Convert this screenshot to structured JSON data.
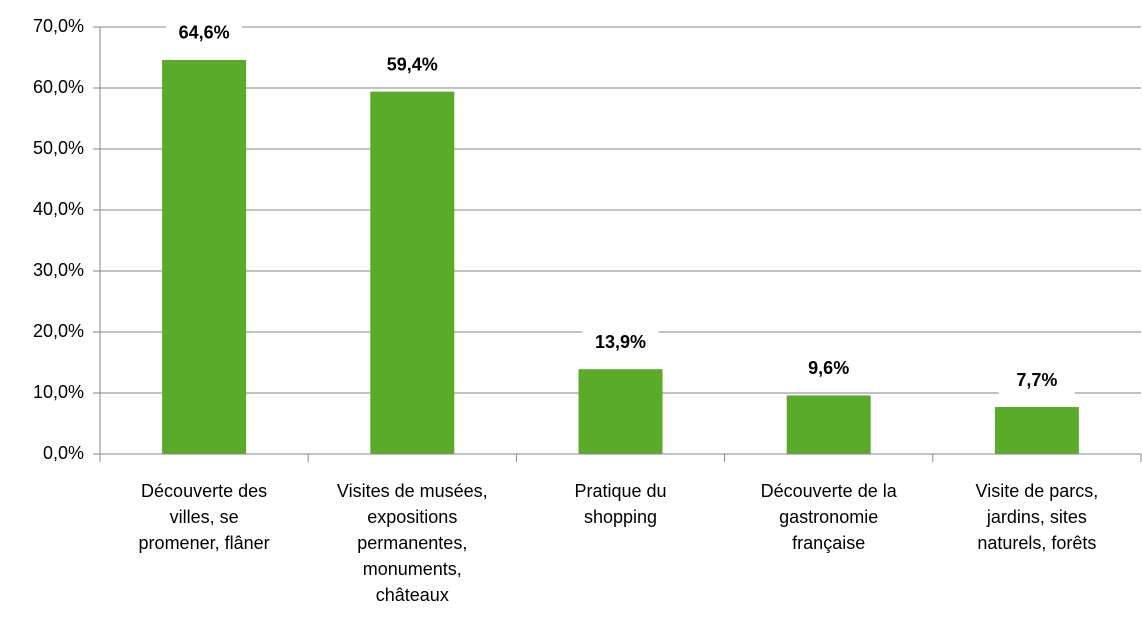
{
  "chart_data": {
    "type": "bar",
    "categories": [
      "Découverte des\nvilles, se\npromener, flâner",
      "Visites de musées,\nexpositions\npermanentes,\nmonuments,\nchâteaux",
      "Pratique du\nshopping",
      "Découverte de la\ngastronomie\nfrançaise",
      "Visite de parcs,\njardins, sites\nnaturels, forêts"
    ],
    "values": [
      64.6,
      59.4,
      13.9,
      9.6,
      7.7
    ],
    "value_labels": [
      "64,6%",
      "59,4%",
      "13,9%",
      "9,6%",
      "7,7%"
    ],
    "color": "#5aab2a",
    "ylim": [
      0,
      70
    ],
    "yticks": [
      {
        "value": 0,
        "label": "0,0%"
      },
      {
        "value": 10,
        "label": "10,0%"
      },
      {
        "value": 20,
        "label": "20,0%"
      },
      {
        "value": 30,
        "label": "30,0%"
      },
      {
        "value": 40,
        "label": "40,0%"
      },
      {
        "value": 50,
        "label": "50,0%"
      },
      {
        "value": 60,
        "label": "60,0%"
      },
      {
        "value": 70,
        "label": "70,0%"
      }
    ],
    "grid": true
  }
}
